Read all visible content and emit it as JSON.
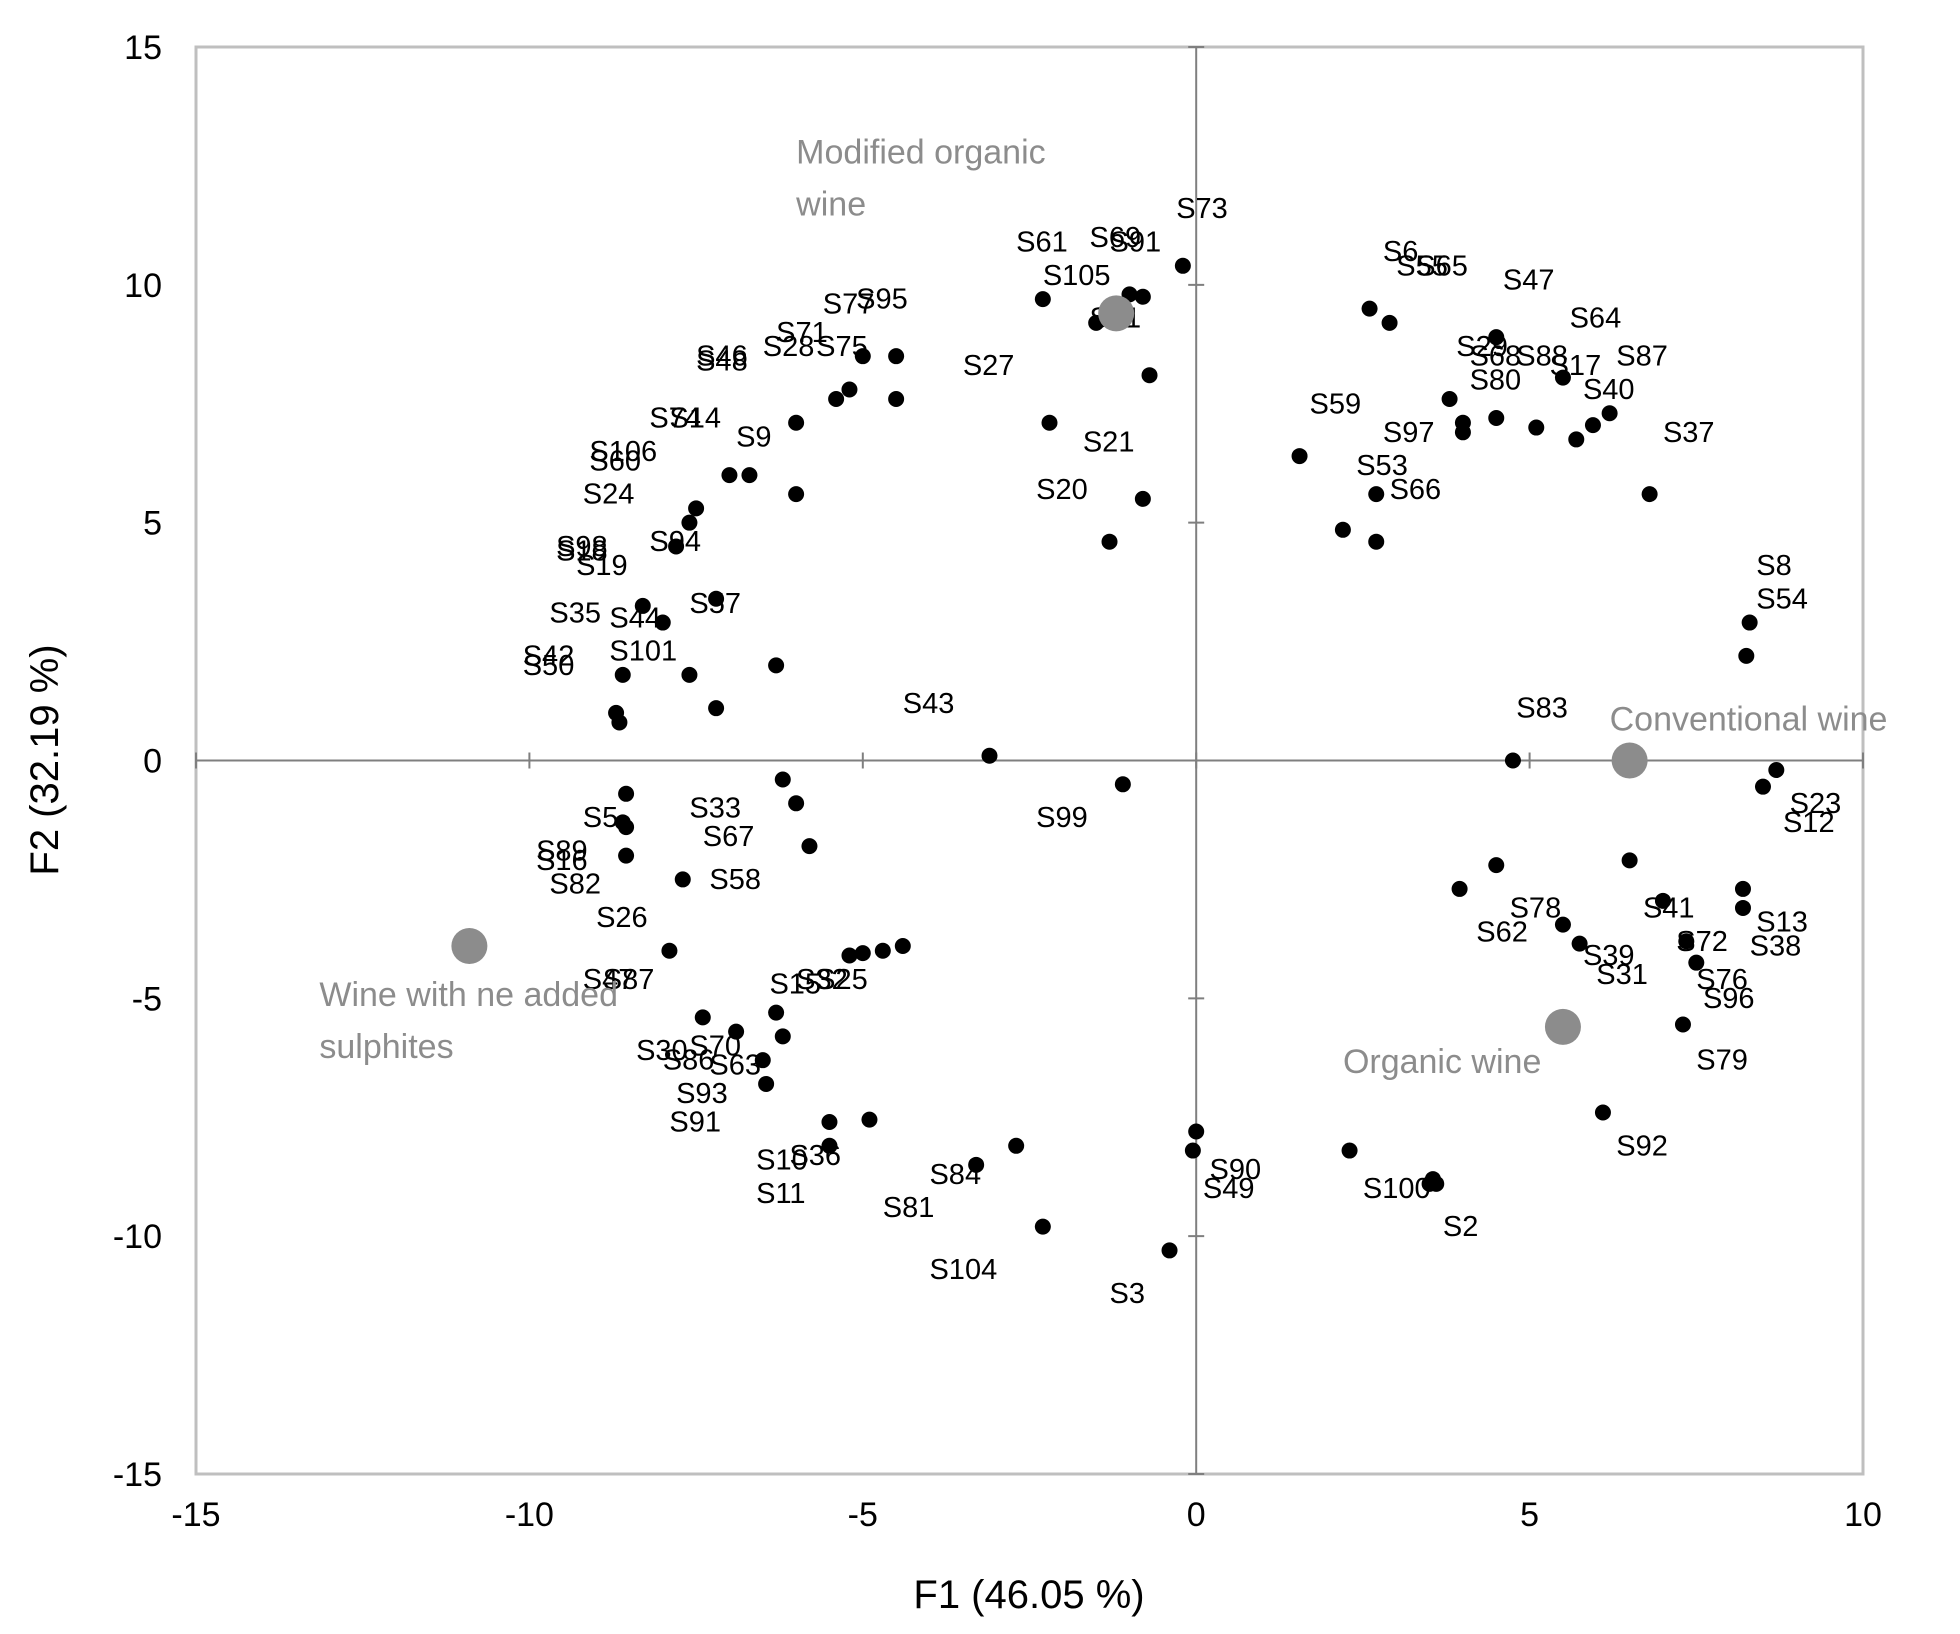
{
  "chart_data": {
    "type": "scatter",
    "xlabel": "F1 (46.05 %)",
    "ylabel": "F2 (32.19 %)",
    "xlim": [
      -15,
      10
    ],
    "ylim": [
      -15,
      15
    ],
    "x_ticks": [
      -15,
      -10,
      -5,
      0,
      5,
      10
    ],
    "y_ticks": [
      -15,
      -10,
      -5,
      0,
      5,
      10,
      15
    ],
    "grid": false,
    "colors": {
      "point": "#000000",
      "category": "#8c8c8c",
      "frame": "#bfbfbf",
      "axis": "#7f7f7f"
    },
    "categories": [
      {
        "label": "Modified organic\nwine",
        "x": -1.2,
        "y": 9.4
      },
      {
        "label": "Conventional wine",
        "x": 6.5,
        "y": 0.0
      },
      {
        "label": "Organic wine",
        "x": 5.5,
        "y": -5.6
      },
      {
        "label": "Wine with ne added\nsulphites",
        "x": -10.9,
        "y": -3.9
      }
    ],
    "points": [
      {
        "label": "S73",
        "x": -1.0,
        "y": 9.8
      },
      {
        "label": "S69",
        "x": -0.8,
        "y": 9.75
      },
      {
        "label": "S91",
        "x": -0.2,
        "y": 10.4
      },
      {
        "label": "S61",
        "x": -2.3,
        "y": 9.7
      },
      {
        "label": "S105",
        "x": -1.5,
        "y": 9.2
      },
      {
        "label": "S51",
        "x": -0.7,
        "y": 8.1
      },
      {
        "label": "S27",
        "x": -2.2,
        "y": 7.1
      },
      {
        "label": "S21",
        "x": -0.8,
        "y": 5.5
      },
      {
        "label": "S20",
        "x": -1.3,
        "y": 4.6
      },
      {
        "label": "S77",
        "x": -5.0,
        "y": 8.5
      },
      {
        "label": "S95",
        "x": -4.5,
        "y": 8.5
      },
      {
        "label": "S71",
        "x": -5.2,
        "y": 7.8
      },
      {
        "label": "S28",
        "x": -5.4,
        "y": 7.6
      },
      {
        "label": "S75",
        "x": -4.5,
        "y": 7.6
      },
      {
        "label": "S46",
        "x": -6.0,
        "y": 7.1
      },
      {
        "label": "S48",
        "x": -6.0,
        "y": 5.6
      },
      {
        "label": "S74",
        "x": -7.0,
        "y": 6.0
      },
      {
        "label": "S14",
        "x": -6.7,
        "y": 6.0
      },
      {
        "label": "S9",
        "x": -7.5,
        "y": 5.3
      },
      {
        "label": "S106",
        "x": -7.6,
        "y": 5.0
      },
      {
        "label": "S60",
        "x": -7.8,
        "y": 4.5
      },
      {
        "label": "S24",
        "x": -8.3,
        "y": 3.25
      },
      {
        "label": "S94",
        "x": -8.0,
        "y": 2.9
      },
      {
        "label": "S98",
        "x": -7.2,
        "y": 3.4
      },
      {
        "label": "S18",
        "x": -8.6,
        "y": 1.8
      },
      {
        "label": "S19",
        "x": -7.6,
        "y": 1.8
      },
      {
        "label": "S35",
        "x": -6.3,
        "y": 2.0
      },
      {
        "label": "S44",
        "x": -7.2,
        "y": 1.1
      },
      {
        "label": "S57",
        "x": -8.7,
        "y": 1.0
      },
      {
        "label": "S42",
        "x": -8.65,
        "y": 0.8
      },
      {
        "label": "S101",
        "x": -8.55,
        "y": -0.7
      },
      {
        "label": "S50",
        "x": -6.2,
        "y": -0.4
      },
      {
        "label": "S43",
        "x": -3.1,
        "y": 0.1
      },
      {
        "label": "S99",
        "x": -1.1,
        "y": -0.5
      },
      {
        "label": "S33",
        "x": -6.0,
        "y": -0.9
      },
      {
        "label": "S67",
        "x": -5.8,
        "y": -1.8
      },
      {
        "label": "S5",
        "x": -8.6,
        "y": -1.3
      },
      {
        "label": "S89",
        "x": -8.55,
        "y": -1.4
      },
      {
        "label": "S16",
        "x": -8.55,
        "y": -2.0
      },
      {
        "label": "S82",
        "x": -7.7,
        "y": -2.5
      },
      {
        "label": "S58",
        "x": -7.9,
        "y": -4.0
      },
      {
        "label": "S26",
        "x": -4.4,
        "y": -3.9
      },
      {
        "label": "S47",
        "x": -4.7,
        "y": -4.0
      },
      {
        "label": "S87",
        "x": -5.0,
        "y": -4.05
      },
      {
        "label": "S15",
        "x": -5.2,
        "y": -4.1
      },
      {
        "label": "S32",
        "x": -7.4,
        "y": -5.4
      },
      {
        "label": "S25",
        "x": -6.3,
        "y": -5.3
      },
      {
        "label": "S30",
        "x": -6.9,
        "y": -5.7
      },
      {
        "label": "S70",
        "x": -6.2,
        "y": -5.8
      },
      {
        "label": "S86",
        "x": -6.5,
        "y": -6.3
      },
      {
        "label": "S63",
        "x": -6.45,
        "y": -6.8
      },
      {
        "label": "S93",
        "x": -5.5,
        "y": -7.6
      },
      {
        "label": "S91",
        "x": -4.9,
        "y": -7.55
      },
      {
        "label": "S10",
        "x": -5.5,
        "y": -8.1
      },
      {
        "label": "S36",
        "x": -3.3,
        "y": -8.5
      },
      {
        "label": "S11",
        "x": -2.7,
        "y": -8.1
      },
      {
        "label": "S84",
        "x": -2.3,
        "y": -9.8
      },
      {
        "label": "S81",
        "x": -0.4,
        "y": -10.3
      },
      {
        "label": "S104",
        "x": 0.0,
        "y": -7.8
      },
      {
        "label": "S3",
        "x": -0.05,
        "y": -8.2
      },
      {
        "label": "S90",
        "x": 2.3,
        "y": -8.2
      },
      {
        "label": "S49",
        "x": 3.6,
        "y": -8.9
      },
      {
        "label": "S100",
        "x": 3.55,
        "y": -8.8
      },
      {
        "label": "S2",
        "x": 4.5,
        "y": -2.2
      },
      {
        "label": "S6",
        "x": 2.6,
        "y": 9.5
      },
      {
        "label": "S55",
        "x": 2.9,
        "y": 9.2
      },
      {
        "label": "S65",
        "x": 4.5,
        "y": 8.9
      },
      {
        "label": "S47",
        "x": 5.5,
        "y": 8.05
      },
      {
        "label": "S64",
        "x": 6.2,
        "y": 7.3
      },
      {
        "label": "S29",
        "x": 3.8,
        "y": 7.6
      },
      {
        "label": "S68",
        "x": 4.0,
        "y": 7.1
      },
      {
        "label": "S88",
        "x": 4.5,
        "y": 7.2
      },
      {
        "label": "S17",
        "x": 5.1,
        "y": 7.0
      },
      {
        "label": "S87",
        "x": 5.7,
        "y": 6.75
      },
      {
        "label": "S40",
        "x": 5.95,
        "y": 7.05
      },
      {
        "label": "S80",
        "x": 4.0,
        "y": 6.9
      },
      {
        "label": "S59",
        "x": 1.55,
        "y": 6.4
      },
      {
        "label": "S97",
        "x": 2.7,
        "y": 5.6
      },
      {
        "label": "S37",
        "x": 6.8,
        "y": 5.6
      },
      {
        "label": "S53",
        "x": 2.2,
        "y": 4.85
      },
      {
        "label": "S66",
        "x": 2.7,
        "y": 4.6
      },
      {
        "label": "S8",
        "x": 8.3,
        "y": 2.9
      },
      {
        "label": "S54",
        "x": 8.25,
        "y": 2.2
      },
      {
        "label": "S83",
        "x": 4.75,
        "y": 0.0
      },
      {
        "label": "S23",
        "x": 8.7,
        "y": -0.2
      },
      {
        "label": "S12",
        "x": 8.5,
        "y": -0.55
      },
      {
        "label": "S41",
        "x": 6.5,
        "y": -2.1
      },
      {
        "label": "S78",
        "x": 7.0,
        "y": -2.95
      },
      {
        "label": "S62",
        "x": 3.95,
        "y": -2.7
      },
      {
        "label": "S13",
        "x": 8.2,
        "y": -2.7
      },
      {
        "label": "S38",
        "x": 8.2,
        "y": -3.1
      },
      {
        "label": "S72",
        "x": 7.35,
        "y": -3.8
      },
      {
        "label": "S39",
        "x": 5.5,
        "y": -3.45
      },
      {
        "label": "S31",
        "x": 5.75,
        "y": -3.85
      },
      {
        "label": "S76",
        "x": 7.5,
        "y": -4.25
      },
      {
        "label": "S96",
        "x": 7.3,
        "y": -5.55
      },
      {
        "label": "S79",
        "x": 6.1,
        "y": -7.4
      },
      {
        "label": "S92",
        "x": 3.5,
        "y": -8.9
      }
    ],
    "point_label_positions": [
      {
        "label": "S73",
        "x": -0.3,
        "y": 11.4
      },
      {
        "label": "S69",
        "x": -1.6,
        "y": 10.8
      },
      {
        "label": "S91",
        "x": -1.3,
        "y": 10.7
      },
      {
        "label": "S61",
        "x": -2.7,
        "y": 10.7
      },
      {
        "label": "S105",
        "x": -2.3,
        "y": 10.0
      },
      {
        "label": "S51",
        "x": -1.6,
        "y": 9.1
      },
      {
        "label": "S27",
        "x": -3.5,
        "y": 8.1
      },
      {
        "label": "S21",
        "x": -1.7,
        "y": 6.5
      },
      {
        "label": "S20",
        "x": -2.4,
        "y": 5.5
      },
      {
        "label": "S77",
        "x": -5.6,
        "y": 9.4
      },
      {
        "label": "S95",
        "x": -5.1,
        "y": 9.5
      },
      {
        "label": "S71",
        "x": -6.3,
        "y": 8.8
      },
      {
        "label": "S28",
        "x": -6.5,
        "y": 8.5
      },
      {
        "label": "S75",
        "x": -5.7,
        "y": 8.5
      },
      {
        "label": "S46",
        "x": -7.5,
        "y": 8.3
      },
      {
        "label": "S48",
        "x": -7.5,
        "y": 8.2
      },
      {
        "label": "S74",
        "x": -8.2,
        "y": 7.0
      },
      {
        "label": "S14",
        "x": -7.9,
        "y": 7.0
      },
      {
        "label": "S9",
        "x": -6.9,
        "y": 6.6
      },
      {
        "label": "S106",
        "x": -9.1,
        "y": 6.3
      },
      {
        "label": "S60",
        "x": -9.1,
        "y": 6.1
      },
      {
        "label": "S24",
        "x": -9.2,
        "y": 5.4
      },
      {
        "label": "S94",
        "x": -8.2,
        "y": 4.4
      },
      {
        "label": "S98",
        "x": -9.6,
        "y": 4.3
      },
      {
        "label": "S18",
        "x": -9.6,
        "y": 4.2
      },
      {
        "label": "S19",
        "x": -9.3,
        "y": 3.9
      },
      {
        "label": "S35",
        "x": -9.7,
        "y": 2.9
      },
      {
        "label": "S44",
        "x": -8.8,
        "y": 2.8
      },
      {
        "label": "S57",
        "x": -7.6,
        "y": 3.1
      },
      {
        "label": "S42",
        "x": -10.1,
        "y": 2.0
      },
      {
        "label": "S101",
        "x": -8.8,
        "y": 2.1
      },
      {
        "label": "S50",
        "x": -10.1,
        "y": 1.8
      },
      {
        "label": "S43",
        "x": -4.4,
        "y": 1.0
      },
      {
        "label": "S99",
        "x": -2.4,
        "y": -1.4
      },
      {
        "label": "S33",
        "x": -7.6,
        "y": -1.2
      },
      {
        "label": "S67",
        "x": -7.4,
        "y": -1.8
      },
      {
        "label": "S5",
        "x": -9.2,
        "y": -1.4
      },
      {
        "label": "S89",
        "x": -9.9,
        "y": -2.1
      },
      {
        "label": "S16",
        "x": -9.9,
        "y": -2.3
      },
      {
        "label": "S82",
        "x": -9.7,
        "y": -2.8
      },
      {
        "label": "S58",
        "x": -7.3,
        "y": -2.7
      },
      {
        "label": "S26",
        "x": -9.0,
        "y": -3.5
      },
      {
        "label": "S47",
        "x": -9.2,
        "y": -4.8
      },
      {
        "label": "S87",
        "x": -8.9,
        "y": -4.8
      },
      {
        "label": "S15",
        "x": -6.4,
        "y": -4.9
      },
      {
        "label": "S32",
        "x": -6.0,
        "y": -4.8
      },
      {
        "label": "S25",
        "x": -5.7,
        "y": -4.8
      },
      {
        "label": "S30",
        "x": -8.4,
        "y": -6.3
      },
      {
        "label": "S70",
        "x": -7.6,
        "y": -6.2
      },
      {
        "label": "S86",
        "x": -8.0,
        "y": -6.5
      },
      {
        "label": "S63",
        "x": -7.3,
        "y": -6.6
      },
      {
        "label": "S93",
        "x": -7.8,
        "y": -7.2
      },
      {
        "label": "S91",
        "x": -7.9,
        "y": -7.8
      },
      {
        "label": "S10",
        "x": -6.6,
        "y": -8.6
      },
      {
        "label": "S36",
        "x": -6.1,
        "y": -8.5
      },
      {
        "label": "S11",
        "x": -6.6,
        "y": -9.3
      },
      {
        "label": "S84",
        "x": -4.0,
        "y": -8.9
      },
      {
        "label": "S81",
        "x": -4.7,
        "y": -9.6
      },
      {
        "label": "S104",
        "x": -4.0,
        "y": -10.9
      },
      {
        "label": "S3",
        "x": -1.3,
        "y": -11.4
      },
      {
        "label": "S90",
        "x": 0.2,
        "y": -8.8
      },
      {
        "label": "S49",
        "x": 0.1,
        "y": -9.2
      },
      {
        "label": "S100",
        "x": 2.5,
        "y": -9.2
      },
      {
        "label": "S2",
        "x": 3.7,
        "y": -10.0
      },
      {
        "label": "S6",
        "x": 2.8,
        "y": 10.5
      },
      {
        "label": "S55",
        "x": 3.0,
        "y": 10.2
      },
      {
        "label": "S65",
        "x": 3.3,
        "y": 10.2
      },
      {
        "label": "S47",
        "x": 4.6,
        "y": 9.9
      },
      {
        "label": "S64",
        "x": 5.6,
        "y": 9.1
      },
      {
        "label": "S29",
        "x": 3.9,
        "y": 8.5
      },
      {
        "label": "S68",
        "x": 4.1,
        "y": 8.3
      },
      {
        "label": "S88",
        "x": 4.8,
        "y": 8.3
      },
      {
        "label": "S17",
        "x": 5.3,
        "y": 8.1
      },
      {
        "label": "S87",
        "x": 6.3,
        "y": 8.3
      },
      {
        "label": "S40",
        "x": 5.8,
        "y": 7.6
      },
      {
        "label": "S80",
        "x": 4.1,
        "y": 7.8
      },
      {
        "label": "S59",
        "x": 1.7,
        "y": 7.3
      },
      {
        "label": "S97",
        "x": 2.8,
        "y": 6.7
      },
      {
        "label": "S37",
        "x": 7.0,
        "y": 6.7
      },
      {
        "label": "S53",
        "x": 2.4,
        "y": 6.0
      },
      {
        "label": "S66",
        "x": 2.9,
        "y": 5.5
      },
      {
        "label": "S8",
        "x": 8.4,
        "y": 3.9
      },
      {
        "label": "S54",
        "x": 8.4,
        "y": 3.2
      },
      {
        "label": "S83",
        "x": 4.8,
        "y": 0.9
      },
      {
        "label": "S23",
        "x": 8.9,
        "y": -1.1
      },
      {
        "label": "S12",
        "x": 8.8,
        "y": -1.5
      },
      {
        "label": "S41",
        "x": 6.7,
        "y": -3.3
      },
      {
        "label": "S78",
        "x": 4.7,
        "y": -3.3
      },
      {
        "label": "S62",
        "x": 4.2,
        "y": -3.8
      },
      {
        "label": "S13",
        "x": 8.4,
        "y": -3.6
      },
      {
        "label": "S38",
        "x": 8.3,
        "y": -4.1
      },
      {
        "label": "S72",
        "x": 7.2,
        "y": -4.0
      },
      {
        "label": "S39",
        "x": 5.8,
        "y": -4.3
      },
      {
        "label": "S31",
        "x": 6.0,
        "y": -4.7
      },
      {
        "label": "S76",
        "x": 7.5,
        "y": -4.8
      },
      {
        "label": "S96",
        "x": 7.6,
        "y": -5.2
      },
      {
        "label": "S79",
        "x": 7.5,
        "y": -6.5
      },
      {
        "label": "S92",
        "x": 6.3,
        "y": -8.3
      }
    ]
  }
}
